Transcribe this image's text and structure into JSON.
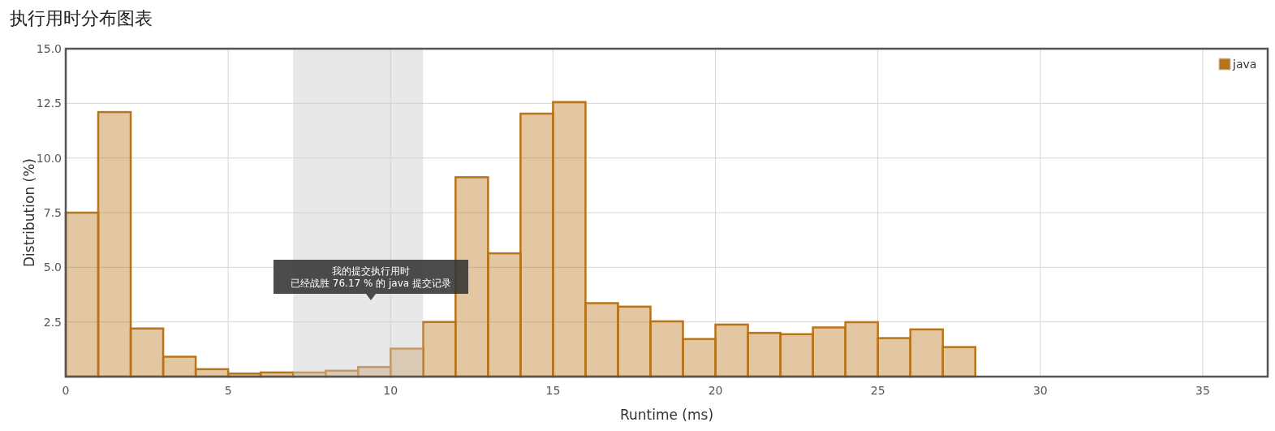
{
  "chart_data": {
    "type": "histogram",
    "title": "执行用时分布图表",
    "xlabel": "Runtime (ms)",
    "ylabel": "Distribution (%)",
    "bins": [
      0,
      1,
      2,
      3,
      4,
      5,
      6,
      7,
      8,
      9,
      10,
      11,
      12,
      13,
      14,
      15,
      16,
      17,
      18,
      19,
      20,
      21,
      22,
      23,
      24,
      25,
      26,
      27,
      28
    ],
    "series": [
      {
        "name": "java",
        "color": "#b8741a",
        "values": [
          7.5,
          12.1,
          2.2,
          0.91,
          0.34,
          0.14,
          0.19,
          0.19,
          0.27,
          0.44,
          1.28,
          2.5,
          9.12,
          5.64,
          12.03,
          12.56,
          3.36,
          3.2,
          2.53,
          1.72,
          2.38,
          2.0,
          1.94,
          2.25,
          2.49,
          1.76,
          2.16,
          1.35
        ]
      }
    ],
    "xlim": [
      0,
      37
    ],
    "ylim": [
      0,
      15
    ],
    "xticks": [
      0,
      5,
      10,
      15,
      20,
      25,
      30,
      35
    ],
    "yticks": [
      {
        "value": 2.5,
        "label": "2.5"
      },
      {
        "value": 5,
        "label": "5.0"
      },
      {
        "value": 7.5,
        "label": "7.5"
      },
      {
        "value": 10,
        "label": "10.0"
      },
      {
        "value": 12.5,
        "label": "12.5"
      },
      {
        "value": 15,
        "label": "15.0"
      }
    ],
    "bands": [
      {
        "axis": "x",
        "from": 7,
        "to": 11,
        "color": "#cccccc"
      }
    ],
    "annotations": [
      "我的提交执行用时",
      "已经战胜 76.17 % 的 java 提交记录"
    ],
    "grid": true,
    "legend": "top right"
  }
}
